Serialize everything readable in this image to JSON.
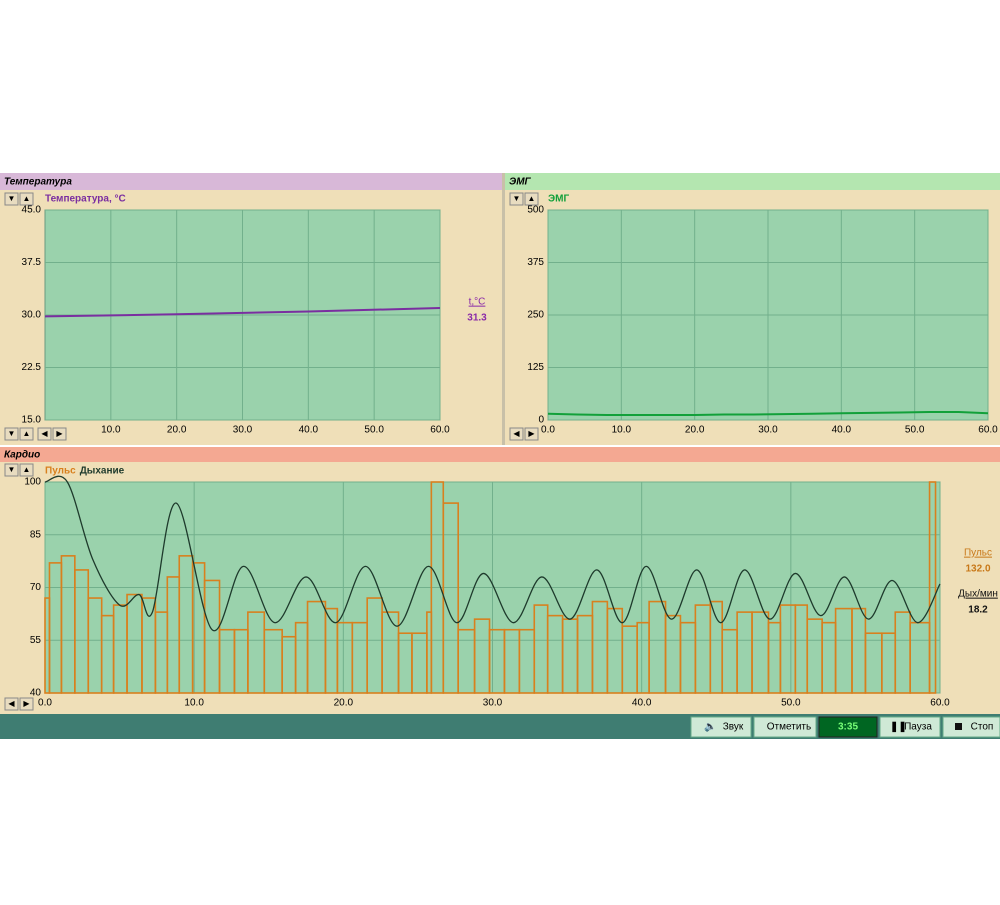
{
  "chart_data": [
    {
      "type": "line",
      "panel_title": "Температура",
      "xlim": [
        0,
        60
      ],
      "ylim": [
        15,
        45
      ],
      "xticks": [
        {
          "value": 10,
          "label": "10.0"
        },
        {
          "value": 20,
          "label": "20.0"
        },
        {
          "value": 30,
          "label": "30.0"
        },
        {
          "value": 40,
          "label": "40.0"
        },
        {
          "value": 50,
          "label": "50.0"
        },
        {
          "value": 60,
          "label": "60.0"
        }
      ],
      "yticks": [
        {
          "value": 15,
          "label": "15.0"
        },
        {
          "value": 22.5,
          "label": "22.5"
        },
        {
          "value": 30,
          "label": "30.0"
        },
        {
          "value": 37.5,
          "label": "37.5"
        },
        {
          "value": 45,
          "label": "45.0"
        }
      ],
      "grid": true,
      "series": [
        {
          "name": "Температура, °C",
          "color": "#7a2ea0",
          "x": [
            0,
            20,
            40,
            60
          ],
          "values": [
            29.8,
            30.1,
            30.5,
            31.0
          ]
        }
      ],
      "readouts": [
        {
          "label": "t,°C",
          "value": "31.3",
          "color": "#8a2aa8"
        }
      ]
    },
    {
      "type": "line",
      "panel_title": "ЭМГ",
      "xlim": [
        0,
        60
      ],
      "ylim": [
        0,
        500
      ],
      "xticks": [
        {
          "value": 0,
          "label": "0.0"
        },
        {
          "value": 10,
          "label": "10.0"
        },
        {
          "value": 20,
          "label": "20.0"
        },
        {
          "value": 30,
          "label": "30.0"
        },
        {
          "value": 40,
          "label": "40.0"
        },
        {
          "value": 50,
          "label": "50.0"
        },
        {
          "value": 60,
          "label": "60.0"
        }
      ],
      "yticks": [
        0,
        125,
        250,
        375,
        500
      ],
      "grid": true,
      "series": [
        {
          "name": "ЭМГ",
          "color": "#12a03a",
          "x": [
            0,
            4,
            8,
            12,
            16,
            20,
            24,
            28,
            32,
            36,
            40,
            44,
            48,
            52,
            56,
            60
          ],
          "values": [
            15,
            13,
            12,
            12,
            12,
            12,
            13,
            13,
            14,
            15,
            16,
            17,
            18,
            19,
            19,
            16
          ]
        }
      ],
      "readouts": []
    },
    {
      "type": "combo",
      "panel_title": "Кардио",
      "xlim": [
        0,
        60
      ],
      "ylim": [
        40,
        100
      ],
      "xticks": [
        {
          "value": 0,
          "label": "0.0"
        },
        {
          "value": 10,
          "label": "10.0"
        },
        {
          "value": 20,
          "label": "20.0"
        },
        {
          "value": 30,
          "label": "30.0"
        },
        {
          "value": 40,
          "label": "40.0"
        },
        {
          "value": 50,
          "label": "50.0"
        },
        {
          "value": 60,
          "label": "60.0"
        }
      ],
      "yticks": [
        40,
        55,
        70,
        85,
        100
      ],
      "grid": true,
      "series": [
        {
          "name": "Пульс",
          "color": "#d8801e",
          "bins": [
            0,
            0.3,
            1.1,
            2.0,
            2.9,
            3.8,
            4.6,
            5.5,
            6.5,
            7.4,
            8.2,
            9.0,
            9.9,
            10.7,
            11.7,
            12.7,
            13.6,
            14.7,
            15.9,
            16.8,
            17.6,
            18.8,
            19.6,
            20.6,
            21.6,
            22.6,
            23.7,
            24.6,
            25.6,
            25.9,
            26.7,
            27.7,
            28.8,
            29.8,
            30.8,
            31.8,
            32.8,
            33.7,
            34.7,
            35.7,
            36.7,
            37.7,
            38.7,
            39.7,
            40.5,
            41.6,
            42.6,
            43.6,
            44.6,
            45.4,
            46.4,
            47.4,
            48.5,
            49.3,
            50.3,
            51.1,
            52.1,
            53.0,
            54.1,
            55.0,
            56.1,
            57.0,
            58.0,
            59.3,
            59.7
          ],
          "values": [
            67,
            77,
            79,
            75,
            67,
            62,
            65,
            68,
            67,
            63,
            73,
            79,
            77,
            72,
            58,
            58,
            63,
            58,
            56,
            60,
            66,
            64,
            60,
            60,
            67,
            63,
            57,
            57,
            63,
            100,
            94,
            58,
            61,
            58,
            58,
            58,
            65,
            62,
            61,
            62,
            66,
            64,
            59,
            60,
            66,
            62,
            60,
            65,
            66,
            58,
            63,
            63,
            60,
            65,
            65,
            61,
            60,
            64,
            64,
            57,
            57,
            63,
            60,
            100
          ]
        },
        {
          "name": "Дыхание",
          "color": "#1e3a2c",
          "x": [
            0,
            1.5,
            3.2,
            5.0,
            6.3,
            7.2,
            8.8,
            11.2,
            13.3,
            15.4,
            17.5,
            19.5,
            21.5,
            23.6,
            25.7,
            27.6,
            29.4,
            31.4,
            33.3,
            35.2,
            37.0,
            38.7,
            40.3,
            42.0,
            43.7,
            45.3,
            46.9,
            48.6,
            50.3,
            52.0,
            53.6,
            55.2,
            56.8,
            58.5,
            60.0
          ],
          "values": [
            100,
            100,
            78,
            65,
            68,
            63,
            94,
            58,
            76,
            60,
            73,
            60,
            76,
            59,
            76,
            60,
            74,
            60,
            73,
            61,
            75,
            60,
            76,
            61,
            75,
            60,
            75,
            61,
            74,
            62,
            73,
            61,
            72,
            60,
            71
          ]
        }
      ],
      "readouts": [
        {
          "label": "Пульс",
          "value": "132.0",
          "color": "#c87818"
        },
        {
          "label": "Дых/мин",
          "value": "18.2",
          "color": "#111111"
        }
      ]
    }
  ],
  "toolbar": {
    "sound": "Звук",
    "mark": "Отметить",
    "timer": "3:35",
    "pause": "Пауза",
    "stop": "Стоп"
  }
}
